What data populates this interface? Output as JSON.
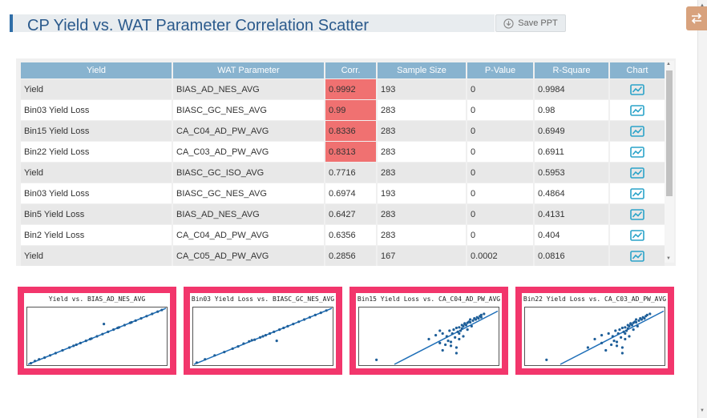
{
  "page": {
    "title": "CP Yield vs. WAT Parameter Correlation Scatter",
    "save_label": "Save PPT"
  },
  "colors": {
    "accent": "#2f6ea8",
    "header_bg": "#88b3cf",
    "highlight": "#f07171",
    "chart_frame": "#f2366c",
    "series": "#1f5f99",
    "swap_button": "#d8a27d"
  },
  "icons": {
    "save": "download-circle-icon",
    "swap": "swap-arrows-icon",
    "chart": "line-chart-icon"
  },
  "table": {
    "columns": [
      "Yield",
      "WAT Parameter",
      "Corr.",
      "Sample Size",
      "P-Value",
      "R-Square",
      "Chart"
    ],
    "rows": [
      {
        "yield": "Yield",
        "param": "BIAS_AD_NES_AVG",
        "corr": "0.9992",
        "size": "193",
        "p": "0",
        "r2": "0.9984",
        "highlight": true
      },
      {
        "yield": "Bin03 Yield Loss",
        "param": "BIASC_GC_NES_AVG",
        "corr": "0.99",
        "size": "283",
        "p": "0",
        "r2": "0.98",
        "highlight": true
      },
      {
        "yield": "Bin15 Yield Loss",
        "param": "CA_C04_AD_PW_AVG",
        "corr": "0.8336",
        "size": "283",
        "p": "0",
        "r2": "0.6949",
        "highlight": true
      },
      {
        "yield": "Bin22 Yield Loss",
        "param": "CA_C03_AD_PW_AVG",
        "corr": "0.8313",
        "size": "283",
        "p": "0",
        "r2": "0.6911",
        "highlight": true
      },
      {
        "yield": "Yield",
        "param": "BIASC_GC_ISO_AVG",
        "corr": "0.7716",
        "size": "283",
        "p": "0",
        "r2": "0.5953",
        "highlight": false
      },
      {
        "yield": "Bin03 Yield Loss",
        "param": "BIASC_GC_NES_AVG",
        "corr": "0.6974",
        "size": "193",
        "p": "0",
        "r2": "0.4864",
        "highlight": false
      },
      {
        "yield": "Bin5 Yield Loss",
        "param": "BIAS_AD_NES_AVG",
        "corr": "0.6427",
        "size": "283",
        "p": "0",
        "r2": "0.4131",
        "highlight": false
      },
      {
        "yield": "Bin2 Yield Loss",
        "param": "CA_C04_AD_PW_AVG",
        "corr": "0.6356",
        "size": "283",
        "p": "0",
        "r2": "0.404",
        "highlight": false
      },
      {
        "yield": "Yield",
        "param": "CA_C05_AD_PW_AVG",
        "corr": "0.2856",
        "size": "167",
        "p": "0.0002",
        "r2": "0.0816",
        "highlight": false
      }
    ]
  },
  "chart_data": [
    {
      "type": "scatter",
      "title": "Yield vs. BIAS_AD_NES_AVG",
      "x": [
        0.02,
        0.05,
        0.08,
        0.12,
        0.16,
        0.2,
        0.25,
        0.3,
        0.33,
        0.38,
        0.42,
        0.46,
        0.5,
        0.54,
        0.58,
        0.62,
        0.66,
        0.7,
        0.74,
        0.78,
        0.82,
        0.86,
        0.9,
        0.94,
        0.97,
        0.55,
        0.45,
        0.65,
        0.35,
        0.75
      ],
      "y": [
        0.02,
        0.06,
        0.09,
        0.12,
        0.16,
        0.2,
        0.25,
        0.3,
        0.33,
        0.38,
        0.42,
        0.46,
        0.5,
        0.54,
        0.58,
        0.62,
        0.66,
        0.7,
        0.74,
        0.78,
        0.82,
        0.86,
        0.9,
        0.94,
        0.97,
        0.72,
        0.45,
        0.65,
        0.35,
        0.75
      ],
      "fit": [
        [
          0,
          0
        ],
        [
          1,
          1
        ]
      ]
    },
    {
      "type": "scatter",
      "title": "Bin03 Yield Loss vs. BIASC_GC_NES_AVG",
      "x": [
        0.02,
        0.08,
        0.15,
        0.22,
        0.28,
        0.32,
        0.36,
        0.4,
        0.44,
        0.48,
        0.52,
        0.55,
        0.58,
        0.62,
        0.65,
        0.68,
        0.72,
        0.76,
        0.8,
        0.84,
        0.88,
        0.92,
        0.96,
        0.6,
        0.5,
        0.42
      ],
      "y": [
        0.03,
        0.09,
        0.16,
        0.22,
        0.28,
        0.32,
        0.37,
        0.41,
        0.44,
        0.48,
        0.52,
        0.55,
        0.58,
        0.62,
        0.65,
        0.68,
        0.72,
        0.76,
        0.8,
        0.84,
        0.88,
        0.92,
        0.96,
        0.42,
        0.5,
        0.43
      ],
      "fit": [
        [
          0,
          0
        ],
        [
          1,
          1
        ]
      ]
    },
    {
      "type": "scatter",
      "title": "Bin15 Yield Loss vs. CA_C04_AD_PW_AVG",
      "x": [
        0.12,
        0.5,
        0.55,
        0.6,
        0.62,
        0.65,
        0.66,
        0.68,
        0.7,
        0.7,
        0.72,
        0.72,
        0.74,
        0.75,
        0.75,
        0.76,
        0.77,
        0.78,
        0.78,
        0.8,
        0.8,
        0.82,
        0.83,
        0.84,
        0.85,
        0.86,
        0.87,
        0.88,
        0.9,
        0.6,
        0.63,
        0.67,
        0.71,
        0.73,
        0.69,
        0.64,
        0.58,
        0.74,
        0.79,
        0.81,
        0.88,
        0.66,
        0.7,
        0.76,
        0.58,
        0.72
      ],
      "y": [
        0.08,
        0.45,
        0.52,
        0.55,
        0.35,
        0.6,
        0.4,
        0.62,
        0.65,
        0.3,
        0.66,
        0.45,
        0.7,
        0.68,
        0.5,
        0.72,
        0.7,
        0.74,
        0.62,
        0.75,
        0.8,
        0.78,
        0.82,
        0.8,
        0.84,
        0.82,
        0.86,
        0.88,
        0.9,
        0.25,
        0.5,
        0.55,
        0.58,
        0.6,
        0.48,
        0.42,
        0.38,
        0.64,
        0.76,
        0.68,
        0.84,
        0.33,
        0.2,
        0.73,
        0.6,
        0.55
      ],
      "fit": [
        [
          0.25,
          0
        ],
        [
          1,
          0.95
        ]
      ]
    },
    {
      "type": "scatter",
      "title": "Bin22 Yield Loss vs. CA_C03_AD_PW_AVG",
      "x": [
        0.15,
        0.45,
        0.5,
        0.55,
        0.6,
        0.62,
        0.65,
        0.66,
        0.68,
        0.7,
        0.7,
        0.72,
        0.72,
        0.74,
        0.75,
        0.75,
        0.76,
        0.77,
        0.78,
        0.78,
        0.8,
        0.8,
        0.82,
        0.83,
        0.84,
        0.85,
        0.86,
        0.87,
        0.88,
        0.9,
        0.58,
        0.63,
        0.67,
        0.71,
        0.73,
        0.69,
        0.64,
        0.74,
        0.79,
        0.81,
        0.66,
        0.7,
        0.76,
        0.55,
        0.72
      ],
      "y": [
        0.08,
        0.3,
        0.45,
        0.52,
        0.55,
        0.35,
        0.6,
        0.4,
        0.62,
        0.65,
        0.3,
        0.66,
        0.45,
        0.7,
        0.68,
        0.5,
        0.72,
        0.7,
        0.74,
        0.62,
        0.75,
        0.8,
        0.78,
        0.82,
        0.8,
        0.84,
        0.82,
        0.86,
        0.88,
        0.9,
        0.25,
        0.5,
        0.55,
        0.58,
        0.6,
        0.48,
        0.42,
        0.64,
        0.76,
        0.68,
        0.33,
        0.2,
        0.73,
        0.38,
        0.55
      ],
      "fit": [
        [
          0.25,
          0
        ],
        [
          1,
          0.95
        ]
      ]
    }
  ]
}
